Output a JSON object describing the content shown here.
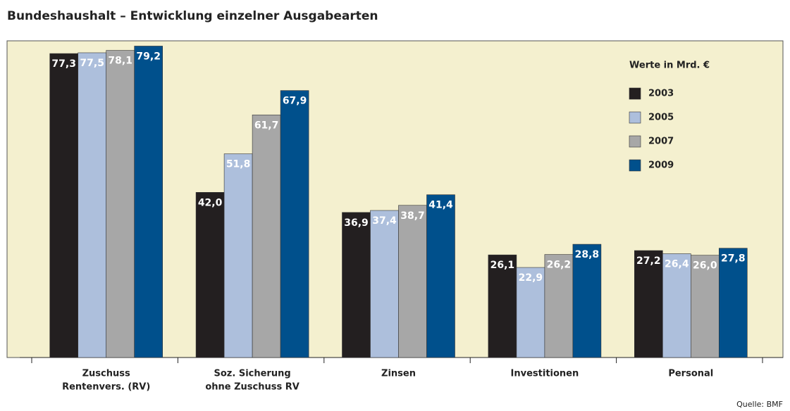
{
  "chart_data": {
    "type": "bar",
    "title": "Bundeshaushalt – Entwicklung einzelner Ausgabearten",
    "legend_title": "Werte in Mrd. €",
    "source": "Quelle: BMF",
    "categories": [
      [
        "Zuschuss",
        "Rentenvers. (RV)"
      ],
      [
        "Soz. Sicherung",
        "ohne Zuschuss RV"
      ],
      [
        "Zinsen"
      ],
      [
        "Investitionen"
      ],
      [
        "Personal"
      ]
    ],
    "ylim": [
      0,
      80
    ],
    "legend": "upper right",
    "series": [
      {
        "name": "2003",
        "color": "#231f20",
        "values": [
          77.3,
          42.0,
          36.9,
          26.1,
          27.2
        ],
        "value_labels": [
          "77,3",
          "42,0",
          "36,9",
          "26,1",
          "27,2"
        ]
      },
      {
        "name": "2005",
        "color": "#adbfdc",
        "values": [
          77.5,
          51.8,
          37.4,
          22.9,
          26.4
        ],
        "value_labels": [
          "77,5",
          "51,8",
          "37,4",
          "22,9",
          "26,4"
        ]
      },
      {
        "name": "2007",
        "color": "#a7a7a7",
        "values": [
          78.1,
          61.7,
          38.7,
          26.2,
          26.0
        ],
        "value_labels": [
          "78,1",
          "61,7",
          "38,7",
          "26,2",
          "26,0"
        ]
      },
      {
        "name": "2009",
        "color": "#00508c",
        "values": [
          79.2,
          67.9,
          41.4,
          28.8,
          27.8
        ],
        "value_labels": [
          "79,2",
          "67,9",
          "41,4",
          "28,8",
          "27,8"
        ]
      }
    ]
  }
}
